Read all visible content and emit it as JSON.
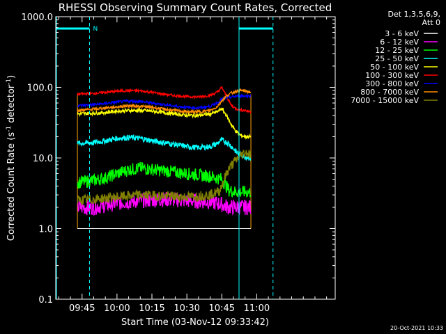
{
  "chart_data": {
    "type": "line",
    "title": "RHESSI Observing Summary Count Rates, Corrected",
    "xlabel": "Start Time (03-Nov-12 09:33:42)",
    "ylabel_main": "Corrected Count Rate (s",
    "ylabel_sup1": "-1",
    "ylabel_mid": " detector",
    "ylabel_sup2": "-1",
    "ylabel_end": ")",
    "y_scale": "log",
    "ylim": [
      0.1,
      1000
    ],
    "y_ticks": [
      "1000.0",
      "100.0",
      "10.0",
      "1.0",
      "0.1"
    ],
    "x_tick_labels": [
      "09:45",
      "10:00",
      "10:15",
      "10:30",
      "10:45",
      "11:00"
    ],
    "x_ticks_min": [
      585,
      600,
      615,
      630,
      645,
      660
    ],
    "xlim_min": [
      573.7,
      693.7
    ],
    "data_start_min": 583,
    "data_end_min": 657.5,
    "legend_header": [
      "Det 1,3,5,6,9,",
      "Att 0"
    ],
    "series": [
      {
        "name": "3 - 6 keV",
        "color": "#ffffff",
        "x": [
          583,
          588,
          595,
          600,
          610,
          615,
          620,
          625,
          630,
          635,
          640,
          642,
          645,
          648,
          651,
          654,
          657.5
        ],
        "y": [
          1.0,
          1.0,
          1.0,
          1.0,
          1.0,
          1.0,
          1.0,
          1.0,
          1.0,
          1.0,
          1.0,
          1.0,
          1.0,
          1.0,
          1.0,
          1.0,
          1.0
        ]
      },
      {
        "name": "6 - 12 keV",
        "color": "#ff00ff",
        "x": [
          583,
          590,
          600,
          610,
          620,
          630,
          640,
          645,
          648,
          651,
          654,
          657.5
        ],
        "y": [
          2.0,
          2.0,
          2.3,
          2.5,
          2.6,
          2.5,
          2.4,
          2.2,
          2.0,
          2.0,
          2.0,
          2.0
        ]
      },
      {
        "name": "12 - 25 keV",
        "color": "#00ff00",
        "x": [
          583,
          590,
          595,
          600,
          605,
          610,
          620,
          630,
          640,
          645,
          648,
          651,
          654,
          657.5
        ],
        "y": [
          4.5,
          4.8,
          5.2,
          6.0,
          6.8,
          7.2,
          6.6,
          6.0,
          5.5,
          5.0,
          3.5,
          3.3,
          3.3,
          3.3
        ]
      },
      {
        "name": "25 - 50 keV",
        "color": "#00ffff",
        "x": [
          583,
          590,
          595,
          600,
          605,
          610,
          615,
          620,
          625,
          630,
          635,
          640,
          643,
          645,
          648,
          650,
          652,
          655,
          657.5
        ],
        "y": [
          16,
          16.5,
          17.5,
          19,
          19.5,
          19,
          17.5,
          16.5,
          15.5,
          14.5,
          14,
          14.5,
          16,
          18,
          16,
          13.5,
          11.5,
          10.5,
          10
        ]
      },
      {
        "name": "50 - 100 keV",
        "color": "#ffff00",
        "x": [
          583,
          590,
          595,
          600,
          605,
          610,
          615,
          620,
          625,
          630,
          635,
          640,
          643,
          645,
          647,
          649,
          651,
          653,
          655,
          657.5
        ],
        "y": [
          42,
          43,
          44,
          46,
          47,
          47,
          46,
          44,
          42,
          40,
          40,
          42,
          45,
          50,
          40,
          30,
          24,
          21,
          20,
          20
        ]
      },
      {
        "name": "100 - 300 keV",
        "color": "#ff0000",
        "x": [
          583,
          590,
          595,
          600,
          605,
          610,
          615,
          620,
          625,
          630,
          635,
          640,
          643,
          645,
          647,
          649,
          651,
          653,
          655,
          657.5
        ],
        "y": [
          80,
          82,
          85,
          88,
          90,
          89,
          85,
          80,
          76,
          74,
          73,
          77,
          85,
          100,
          75,
          56,
          50,
          48,
          47,
          45
        ]
      },
      {
        "name": "300 - 800 keV",
        "color": "#0000ff",
        "x": [
          583,
          590,
          595,
          600,
          605,
          610,
          615,
          620,
          625,
          630,
          635,
          640,
          643,
          645,
          648,
          651,
          654,
          657.5
        ],
        "y": [
          55,
          57,
          59,
          62,
          64,
          63,
          60,
          57,
          54,
          52,
          51,
          54,
          60,
          68,
          72,
          75,
          76,
          75
        ]
      },
      {
        "name": "800 - 7000 keV",
        "color": "#ff8c00",
        "x": [
          583,
          590,
          595,
          600,
          605,
          610,
          615,
          620,
          625,
          630,
          635,
          640,
          643,
          645,
          648,
          651,
          654,
          657.5
        ],
        "y": [
          47,
          49,
          51,
          53,
          55,
          54,
          52,
          49,
          47,
          45,
          45,
          47,
          53,
          65,
          80,
          88,
          90,
          85
        ]
      },
      {
        "name": "7000 - 15000 keV",
        "color": "#808000",
        "x": [
          583,
          590,
          600,
          610,
          620,
          630,
          640,
          644,
          646,
          648,
          650,
          652,
          654,
          656,
          657.5
        ],
        "y": [
          2.5,
          2.6,
          2.8,
          3.0,
          2.9,
          2.8,
          3.0,
          3.4,
          5.0,
          7.0,
          8.5,
          10,
          11.5,
          12,
          11
        ]
      }
    ],
    "vertical_markers": [
      {
        "x_min": 574,
        "color": "#00ffff",
        "style": "solid"
      },
      {
        "x_min": 588.2,
        "color": "#00ffff",
        "style": "dashed"
      },
      {
        "x_min": 652.4,
        "color": "#00ffff",
        "style": "solid"
      },
      {
        "x_min": 667,
        "color": "#00ffff",
        "style": "dashed"
      }
    ],
    "night_bars": [
      {
        "x_start_min": 574,
        "x_end_min": 588.2,
        "label": "N"
      },
      {
        "x_start_min": 652.4,
        "x_end_min": 667,
        "label": ""
      }
    ],
    "grid": false
  },
  "footer_timestamp": "20-Oct-2021 10:33"
}
